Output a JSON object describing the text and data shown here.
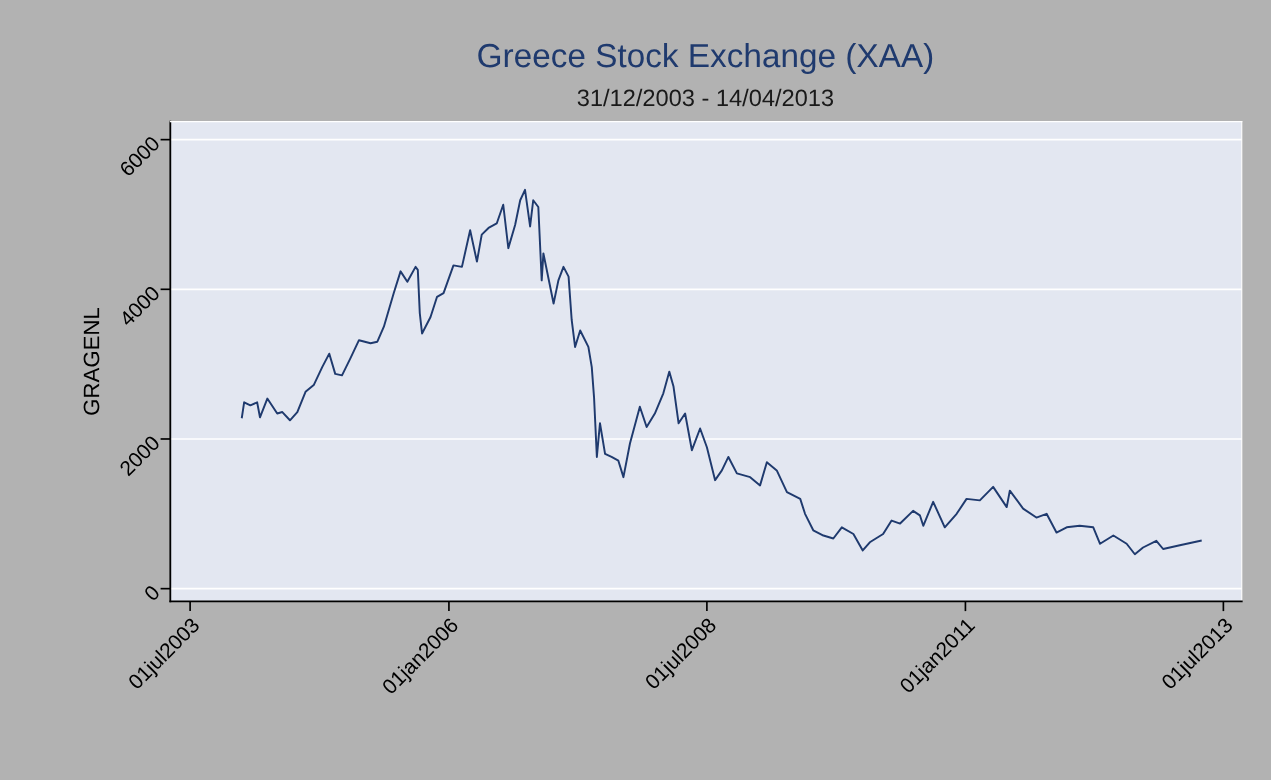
{
  "chart_data": {
    "type": "line",
    "title": "Greece Stock Exchange (XAA)",
    "subtitle": "31/12/2003 - 14/04/2013",
    "ylabel": "GRAGENL",
    "x": [
      "2003-12-31",
      "2004-01-08",
      "2004-01-30",
      "2004-02-23",
      "2004-03-04",
      "2004-03-30",
      "2004-05-04",
      "2004-05-22",
      "2004-06-18",
      "2004-07-14",
      "2004-08-12",
      "2004-09-10",
      "2004-10-10",
      "2004-11-04",
      "2004-11-25",
      "2004-12-19",
      "2005-01-18",
      "2005-02-17",
      "2005-03-30",
      "2005-04-23",
      "2005-05-16",
      "2005-06-20",
      "2005-07-14",
      "2005-08-07",
      "2005-09-05",
      "2005-09-13",
      "2005-09-20",
      "2005-09-28",
      "2005-10-28",
      "2005-11-20",
      "2005-12-13",
      "2006-01-17",
      "2006-02-16",
      "2006-03-17",
      "2006-04-10",
      "2006-04-27",
      "2006-05-21",
      "2006-06-19",
      "2006-07-12",
      "2006-07-30",
      "2006-08-23",
      "2006-09-10",
      "2006-09-27",
      "2006-10-15",
      "2006-10-26",
      "2006-11-13",
      "2006-11-25",
      "2006-12-01",
      "2007-01-06",
      "2007-01-23",
      "2007-02-10",
      "2007-02-28",
      "2007-03-11",
      "2007-03-23",
      "2007-04-10",
      "2007-05-09",
      "2007-05-21",
      "2007-05-29",
      "2007-06-08",
      "2007-06-19",
      "2007-07-07",
      "2007-07-30",
      "2007-08-23",
      "2007-09-10",
      "2007-10-03",
      "2007-11-07",
      "2007-12-01",
      "2007-12-30",
      "2008-01-29",
      "2008-02-19",
      "2008-03-05",
      "2008-03-23",
      "2008-04-15",
      "2008-05-09",
      "2008-06-07",
      "2008-07-01",
      "2008-07-30",
      "2008-08-23",
      "2008-09-15",
      "2008-10-15",
      "2008-12-01",
      "2009-01-05",
      "2009-01-29",
      "2009-03-05",
      "2009-04-10",
      "2009-05-27",
      "2009-06-13",
      "2009-07-12",
      "2009-08-17",
      "2009-09-21",
      "2009-10-21",
      "2009-12-01",
      "2010-01-03",
      "2010-01-28",
      "2010-03-16",
      "2010-04-15",
      "2010-05-15",
      "2010-06-30",
      "2010-07-24",
      "2010-08-05",
      "2010-09-09",
      "2010-10-20",
      "2010-12-01",
      "2011-01-05",
      "2011-02-21",
      "2011-04-09",
      "2011-05-27",
      "2011-06-07",
      "2011-07-24",
      "2011-09-09",
      "2011-10-15",
      "2011-11-19",
      "2011-12-25",
      "2012-02-09",
      "2012-03-28",
      "2012-04-21",
      "2012-06-07",
      "2012-07-24",
      "2012-08-22",
      "2012-09-20",
      "2012-11-06",
      "2012-11-30",
      "2013-01-28",
      "2013-04-12"
    ],
    "series": [
      {
        "color": "#1f3a6e",
        "values": [
          2290,
          2490,
          2450,
          2490,
          2290,
          2540,
          2340,
          2360,
          2250,
          2360,
          2630,
          2720,
          2960,
          3140,
          2870,
          2850,
          3080,
          3320,
          3280,
          3300,
          3500,
          3950,
          4240,
          4100,
          4300,
          4260,
          3680,
          3410,
          3630,
          3900,
          3950,
          4320,
          4300,
          4790,
          4370,
          4730,
          4820,
          4880,
          5130,
          4550,
          4860,
          5190,
          5330,
          4840,
          5190,
          5100,
          4120,
          4480,
          3810,
          4120,
          4300,
          4170,
          3590,
          3230,
          3450,
          3230,
          2960,
          2560,
          1760,
          2210,
          1800,
          1760,
          1710,
          1490,
          1940,
          2430,
          2160,
          2340,
          2610,
          2900,
          2700,
          2210,
          2340,
          1850,
          2140,
          1890,
          1450,
          1580,
          1760,
          1540,
          1490,
          1380,
          1690,
          1580,
          1290,
          1200,
          1000,
          780,
          710,
          670,
          820,
          730,
          510,
          620,
          730,
          910,
          870,
          1040,
          980,
          840,
          1160,
          820,
          1000,
          1200,
          1180,
          1360,
          1090,
          1310,
          1070,
          950,
          1000,
          750,
          820,
          840,
          820,
          600,
          710,
          600,
          460,
          550,
          640,
          530,
          580,
          640
        ]
      }
    ],
    "xlim": [
      "2003-04-22",
      "2013-09-04"
    ],
    "xticks": [
      {
        "value": "2003-07-01",
        "label": "01jul2003"
      },
      {
        "value": "2006-01-01",
        "label": "01jan2006"
      },
      {
        "value": "2008-07-01",
        "label": "01jul2008"
      },
      {
        "value": "2011-01-01",
        "label": "01jan2011"
      },
      {
        "value": "2013-07-01",
        "label": "01jul2013"
      }
    ],
    "ylim": [
      -170,
      6240
    ],
    "yticks": [
      0,
      2000,
      4000,
      6000
    ],
    "grid": "y",
    "line_style": "solid",
    "marker": "none"
  }
}
